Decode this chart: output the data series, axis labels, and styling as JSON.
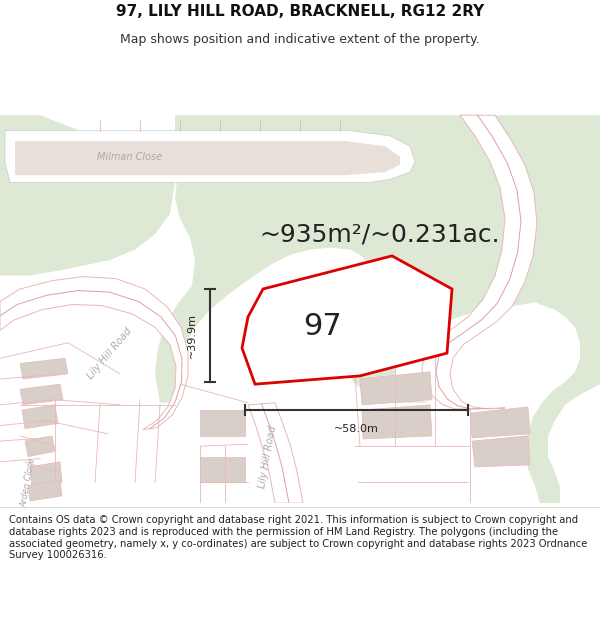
{
  "title": "97, LILY HILL ROAD, BRACKNELL, RG12 2RY",
  "subtitle": "Map shows position and indicative extent of the property.",
  "area_text": "~935m²/~0.231ac.",
  "property_number": "97",
  "dim_width": "~58.0m",
  "dim_height": "~39.9m",
  "footer_text": "Contains OS data © Crown copyright and database right 2021. This information is subject to Crown copyright and database rights 2023 and is reproduced with the permission of HM Land Registry. The polygons (including the associated geometry, namely x, y co-ordinates) are subject to Crown copyright and database rights 2023 Ordnance Survey 100026316.",
  "map_bg": "#f7f4f0",
  "road_color": "#ffffff",
  "road_border": "#e8b8b8",
  "road_center_line": "#e0a0a0",
  "green_area": "#dde8d5",
  "plot_fill": "#ffffff",
  "plot_border": "#dd0000",
  "building_fill": "#d8d0c8",
  "dim_color": "#333333",
  "label_color": "#aaaaaa",
  "title_fontsize": 11,
  "subtitle_fontsize": 9,
  "area_fontsize": 18,
  "number_fontsize": 22,
  "footer_fontsize": 7.2,
  "road_label_fontsize": 7,
  "road_label_color": "#aaaaaa"
}
